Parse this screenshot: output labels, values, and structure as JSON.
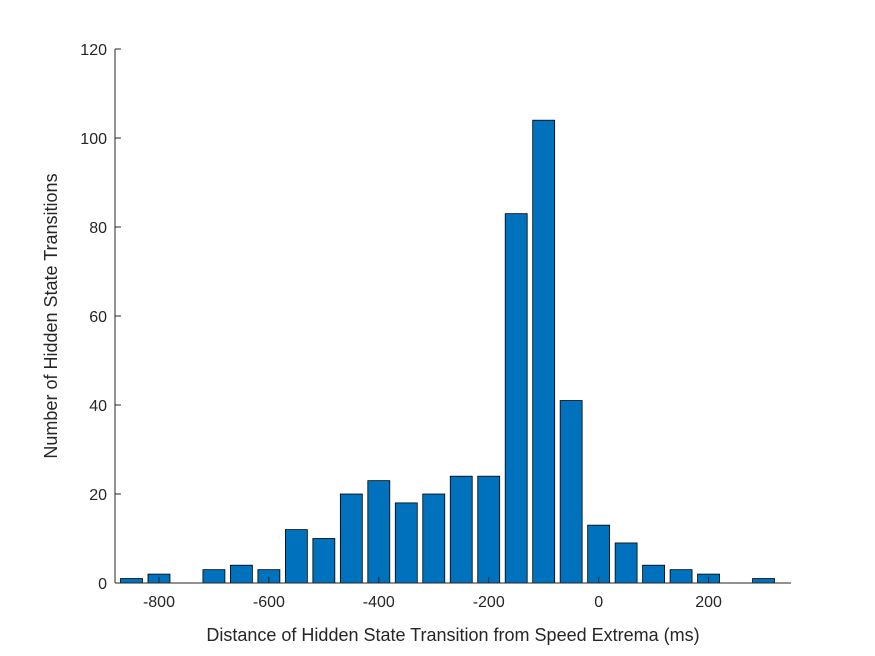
{
  "chart_data": {
    "type": "bar",
    "title": "",
    "xlabel": "Distance of Hidden State Transition from Speed Extrema (ms)",
    "ylabel": "Number of Hidden State Transitions",
    "xlim": [
      -880,
      350
    ],
    "ylim": [
      0,
      120
    ],
    "bin_width": 50,
    "x": [
      -850,
      -800,
      -750,
      -700,
      -650,
      -600,
      -550,
      -500,
      -450,
      -400,
      -350,
      -300,
      -250,
      -200,
      -150,
      -100,
      -50,
      0,
      50,
      100,
      150,
      200,
      250,
      300
    ],
    "values": [
      1,
      2,
      0,
      3,
      4,
      3,
      12,
      10,
      20,
      23,
      18,
      20,
      24,
      24,
      83,
      104,
      41,
      13,
      9,
      4,
      3,
      2,
      0,
      1
    ],
    "xticks": [
      -800,
      -600,
      -400,
      -200,
      0,
      200
    ],
    "yticks": [
      0,
      20,
      40,
      60,
      80,
      100,
      120
    ],
    "bar_color": "#0072BD",
    "edge_color": "#000000",
    "axis_color": "#262626",
    "grid": false,
    "box": false
  }
}
